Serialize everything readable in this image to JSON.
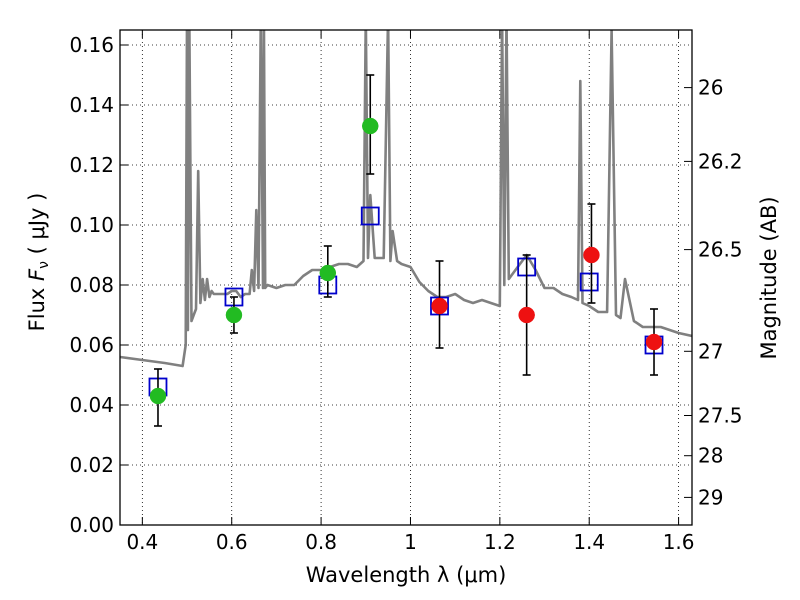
{
  "chart_data": {
    "type": "scatter",
    "xlabel": "Wavelength  λ (μm)",
    "ylabel_prefix": "Flux ",
    "ylabel_var": "F",
    "ylabel_sub": "ν",
    "ylabel_unit": " ( μJy )",
    "y2label": "Magnitude (AB)",
    "xlim": [
      0.35,
      1.63
    ],
    "ylim": [
      0.0,
      0.165
    ],
    "grid": true,
    "x_ticks": [
      0.4,
      0.6,
      0.8,
      1.0,
      1.2,
      1.4,
      1.6
    ],
    "x_tick_labels": [
      "0.4",
      "0.6",
      "0.8",
      "1",
      "1.2",
      "1.4",
      "1.6"
    ],
    "y_ticks": [
      0.0,
      0.02,
      0.04,
      0.06,
      0.08,
      0.1,
      0.12,
      0.14,
      0.16
    ],
    "y_tick_labels": [
      "0.00",
      "0.02",
      "0.04",
      "0.06",
      "0.08",
      "0.10",
      "0.12",
      "0.14",
      "0.16"
    ],
    "y2_ticks": [
      {
        "label": "26",
        "flux": 0.1458
      },
      {
        "label": "26.2",
        "flux": 0.1212
      },
      {
        "label": "26.5",
        "flux": 0.0918
      },
      {
        "label": "27",
        "flux": 0.0579
      },
      {
        "label": "27.5",
        "flux": 0.0365
      },
      {
        "label": "28",
        "flux": 0.0231
      },
      {
        "label": "29",
        "flux": 0.0092
      }
    ],
    "series": [
      {
        "name": "model_spectrum",
        "kind": "line",
        "color": "#808080",
        "x": [
          0.35,
          0.4,
          0.45,
          0.49,
          0.497,
          0.5,
          0.502,
          0.505,
          0.51,
          0.515,
          0.52,
          0.525,
          0.53,
          0.535,
          0.54,
          0.545,
          0.55,
          0.555,
          0.56,
          0.57,
          0.58,
          0.59,
          0.6,
          0.61,
          0.62,
          0.63,
          0.64,
          0.645,
          0.65,
          0.655,
          0.66,
          0.665,
          0.67,
          0.672,
          0.675,
          0.68,
          0.7,
          0.72,
          0.74,
          0.76,
          0.78,
          0.8,
          0.82,
          0.84,
          0.86,
          0.88,
          0.895,
          0.9,
          0.905,
          0.91,
          0.92,
          0.94,
          0.95,
          0.955,
          0.96,
          0.97,
          0.98,
          1.0,
          1.02,
          1.04,
          1.06,
          1.08,
          1.1,
          1.12,
          1.14,
          1.16,
          1.18,
          1.2,
          1.205,
          1.21,
          1.215,
          1.22,
          1.24,
          1.26,
          1.28,
          1.3,
          1.32,
          1.34,
          1.36,
          1.375,
          1.38,
          1.385,
          1.4,
          1.42,
          1.44,
          1.45,
          1.46,
          1.47,
          1.48,
          1.5,
          1.52,
          1.54,
          1.56,
          1.58,
          1.6,
          1.63
        ],
        "y": [
          0.056,
          0.055,
          0.054,
          0.053,
          0.06,
          0.17,
          0.065,
          0.17,
          0.068,
          0.07,
          0.072,
          0.118,
          0.074,
          0.082,
          0.075,
          0.082,
          0.076,
          0.078,
          0.077,
          0.077,
          0.077,
          0.077,
          0.078,
          0.078,
          0.076,
          0.077,
          0.077,
          0.085,
          0.078,
          0.105,
          0.079,
          0.17,
          0.079,
          0.17,
          0.079,
          0.08,
          0.079,
          0.08,
          0.08,
          0.083,
          0.085,
          0.085,
          0.086,
          0.087,
          0.087,
          0.086,
          0.088,
          0.17,
          0.089,
          0.11,
          0.089,
          0.089,
          0.17,
          0.088,
          0.098,
          0.088,
          0.087,
          0.086,
          0.081,
          0.078,
          0.076,
          0.076,
          0.077,
          0.075,
          0.074,
          0.075,
          0.074,
          0.073,
          0.17,
          0.08,
          0.17,
          0.082,
          0.086,
          0.09,
          0.085,
          0.079,
          0.079,
          0.077,
          0.076,
          0.075,
          0.148,
          0.074,
          0.073,
          0.071,
          0.071,
          0.165,
          0.07,
          0.069,
          0.082,
          0.068,
          0.066,
          0.066,
          0.066,
          0.065,
          0.064,
          0.063
        ]
      },
      {
        "name": "model_photometry",
        "kind": "marker",
        "marker": "open-square",
        "color": "#0000cc",
        "x": [
          0.435,
          0.605,
          0.815,
          0.91,
          1.065,
          1.26,
          1.4,
          1.545
        ],
        "y": [
          0.046,
          0.076,
          0.08,
          0.103,
          0.073,
          0.086,
          0.081,
          0.06
        ]
      },
      {
        "name": "observed_green",
        "kind": "marker",
        "marker": "circle",
        "color": "#22bb22",
        "x": [
          0.435,
          0.605,
          0.815,
          0.91
        ],
        "y": [
          0.043,
          0.07,
          0.084,
          0.133
        ],
        "yerr_low": [
          0.033,
          0.064,
          0.076,
          0.117
        ],
        "yerr_high": [
          0.052,
          0.076,
          0.093,
          0.15
        ]
      },
      {
        "name": "observed_red",
        "kind": "marker",
        "marker": "circle",
        "color": "#ee1111",
        "x": [
          1.065,
          1.26,
          1.405,
          1.545
        ],
        "y": [
          0.073,
          0.07,
          0.09,
          0.061
        ],
        "yerr_low": [
          0.059,
          0.05,
          0.074,
          0.05
        ],
        "yerr_high": [
          0.088,
          0.09,
          0.107,
          0.072
        ]
      }
    ]
  }
}
